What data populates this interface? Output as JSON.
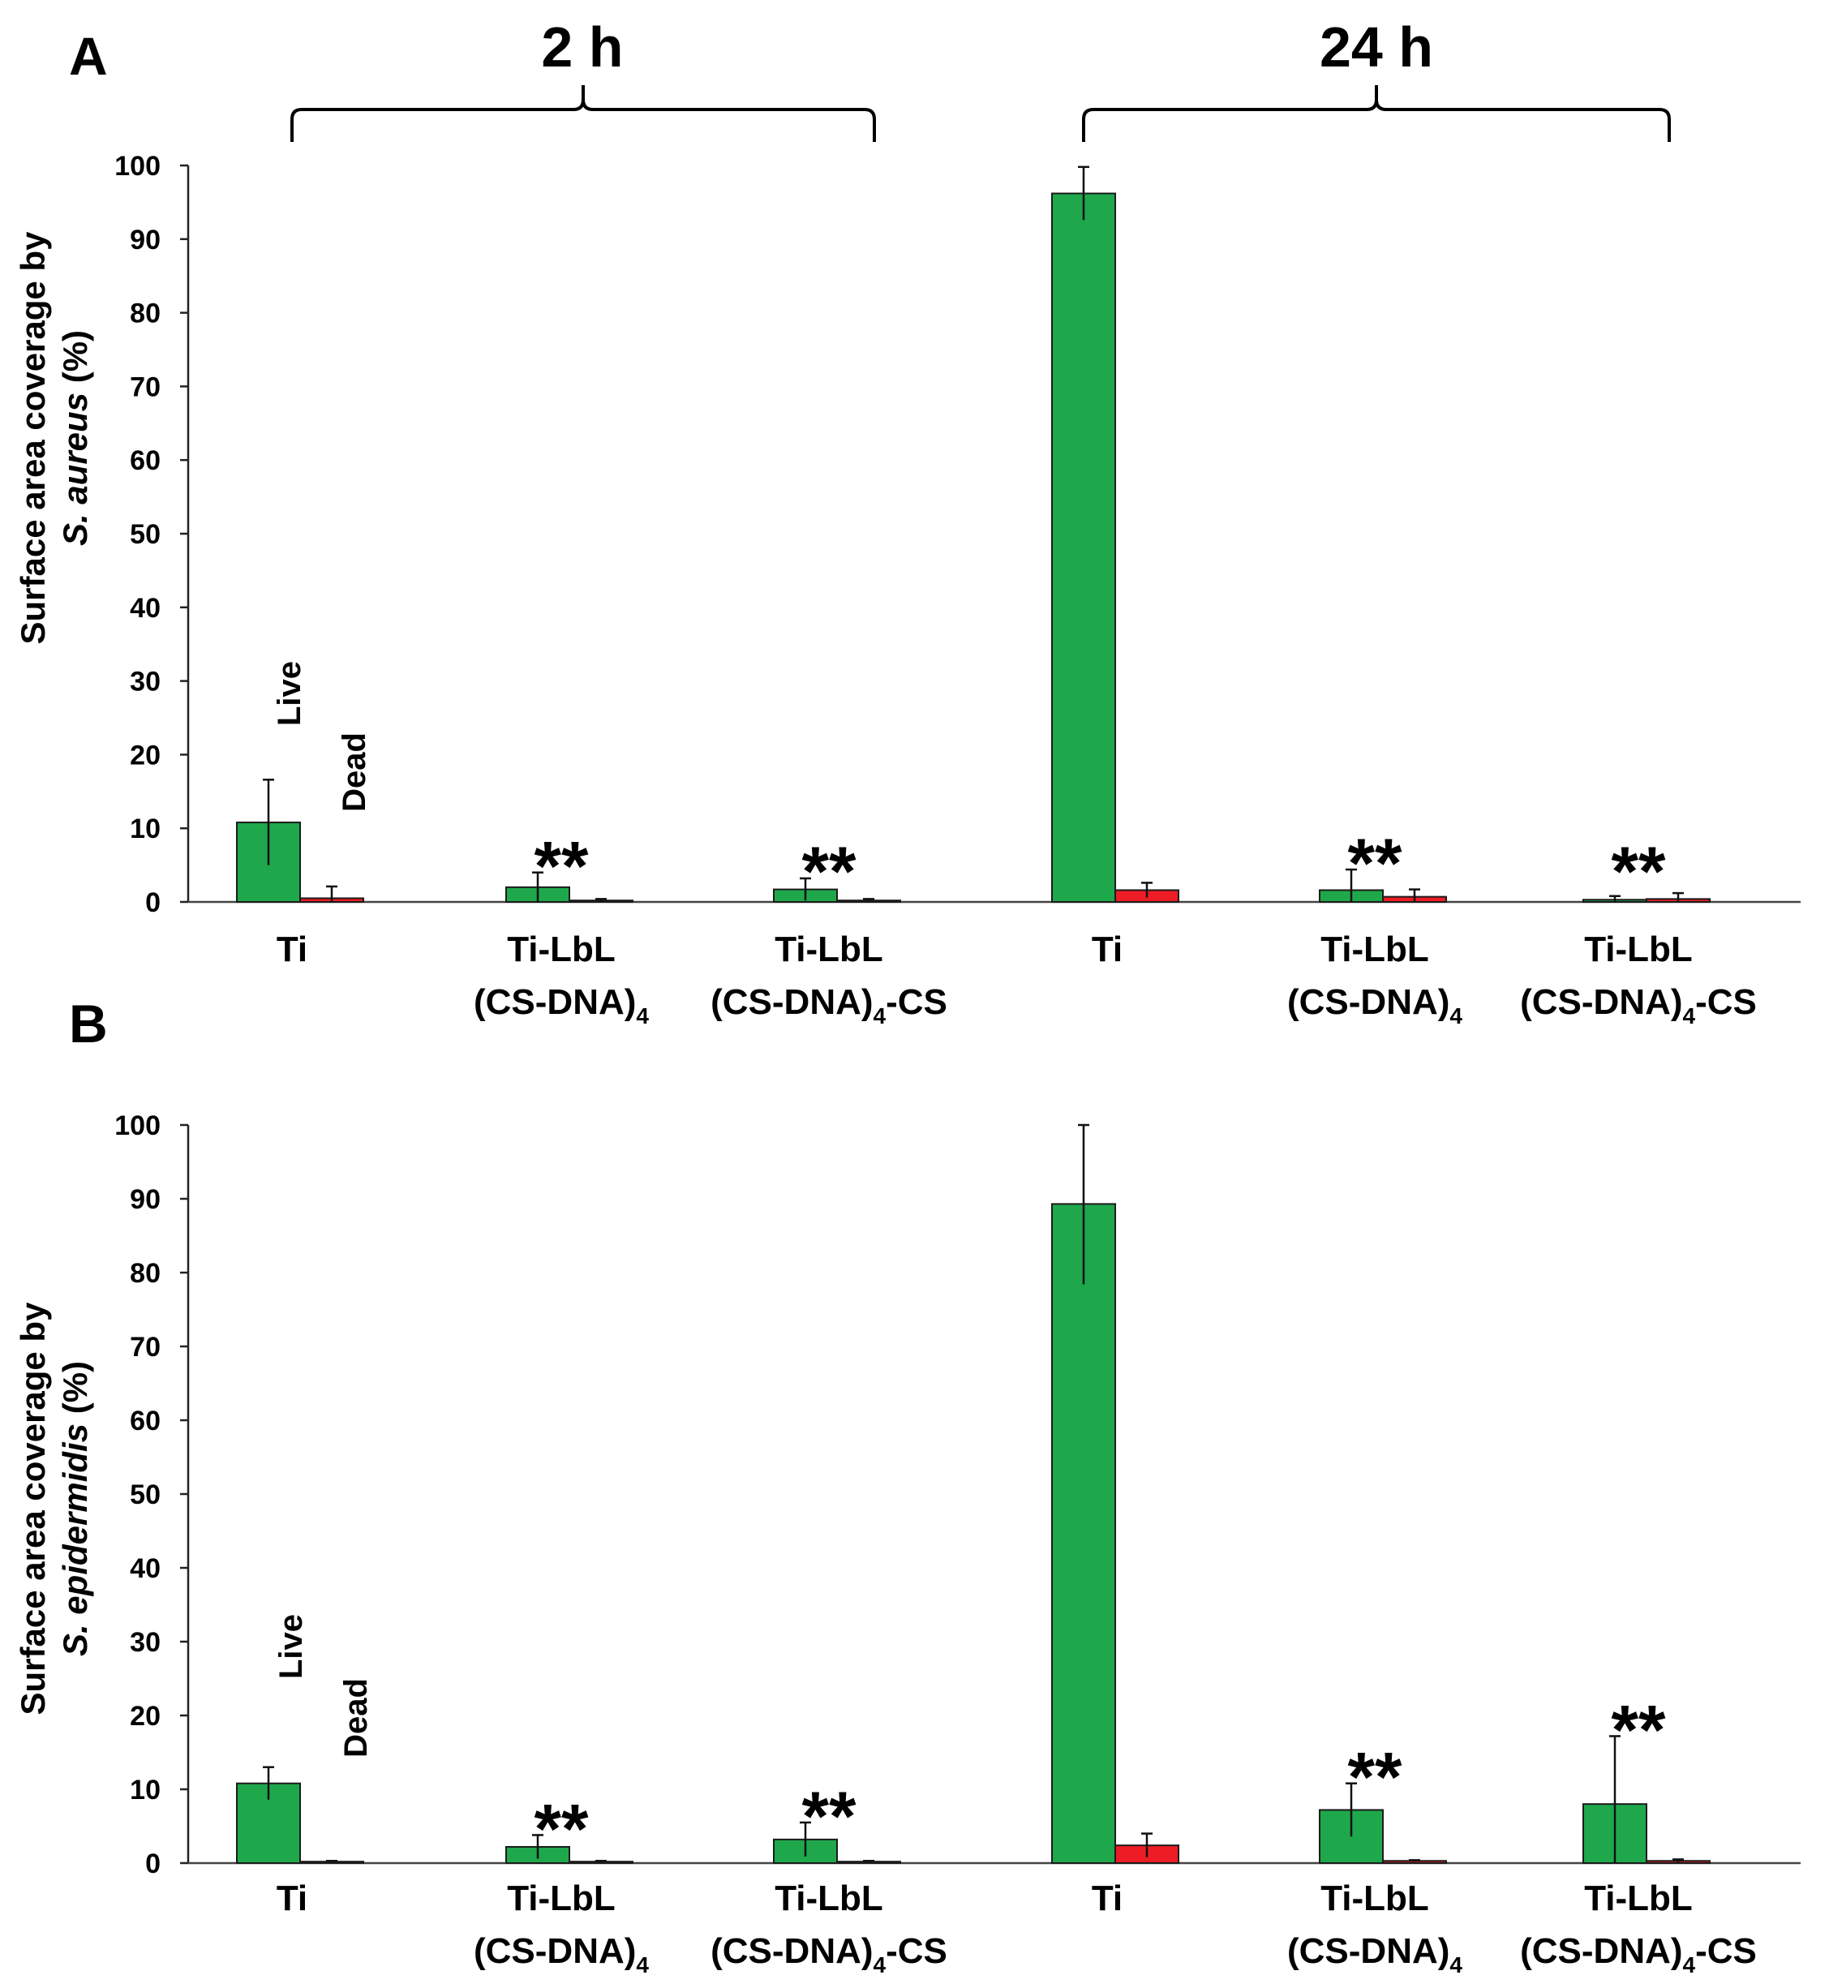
{
  "figure": {
    "time_labels": [
      "2 h",
      "24 h"
    ],
    "series_names": [
      "Live",
      "Dead"
    ],
    "series_colors": {
      "Live": "#1fa84b",
      "Dead": "#ee1c24"
    },
    "significance_marker": "**"
  },
  "chart_data": [
    {
      "type": "bar",
      "panel": "A",
      "title": "",
      "ylabel_prefix": "Surface area coverage by",
      "ylabel_species": "S. aureus",
      "ylabel_suffix": "(%)",
      "xlabel": "",
      "ylim": [
        0,
        100
      ],
      "yticks": [
        0,
        10,
        20,
        30,
        40,
        50,
        60,
        70,
        80,
        90,
        100
      ],
      "groups": [
        {
          "time": "2 h",
          "categories": [
            "Ti",
            "Ti-LbL (CS-DNA)4",
            "Ti-LbL (CS-DNA)4-CS"
          ]
        },
        {
          "time": "24 h",
          "categories": [
            "Ti",
            "Ti-LbL (CS-DNA)4",
            "Ti-LbL (CS-DNA)4-CS"
          ]
        }
      ],
      "categories": [
        {
          "line1": "Ti",
          "line2": ""
        },
        {
          "line1": "Ti-LbL",
          "line2": "(CS-DNA)",
          "sub": "4",
          "suffix": ""
        },
        {
          "line1": "Ti-LbL",
          "line2": "(CS-DNA)",
          "sub": "4",
          "suffix": "-CS"
        },
        {
          "line1": "Ti",
          "line2": ""
        },
        {
          "line1": "Ti-LbL",
          "line2": "(CS-DNA)",
          "sub": "4",
          "suffix": ""
        },
        {
          "line1": "Ti-LbL",
          "line2": "(CS-DNA)",
          "sub": "4",
          "suffix": "-CS"
        }
      ],
      "series": [
        {
          "name": "Live",
          "values": [
            10.8,
            2.0,
            1.7,
            96.2,
            1.6,
            0.3
          ],
          "errors": [
            5.8,
            2.0,
            1.5,
            3.6,
            2.8,
            0.5
          ]
        },
        {
          "name": "Dead",
          "values": [
            0.5,
            0.2,
            0.2,
            1.6,
            0.7,
            0.4
          ],
          "errors": [
            1.6,
            0.2,
            0.2,
            1.0,
            1.0,
            0.8
          ]
        }
      ],
      "significance": [
        false,
        true,
        true,
        false,
        true,
        true
      ]
    },
    {
      "type": "bar",
      "panel": "B",
      "title": "",
      "ylabel_prefix": "Surface area coverage by",
      "ylabel_species": "S. epidermidis",
      "ylabel_suffix": "(%)",
      "xlabel": "",
      "ylim": [
        0,
        100
      ],
      "yticks": [
        0,
        10,
        20,
        30,
        40,
        50,
        60,
        70,
        80,
        90,
        100
      ],
      "groups": [
        {
          "time": "2 h",
          "categories": [
            "Ti",
            "Ti-LbL (CS-DNA)4",
            "Ti-LbL (CS-DNA)4-CS"
          ]
        },
        {
          "time": "24 h",
          "categories": [
            "Ti",
            "Ti-LbL (CS-DNA)4",
            "Ti-LbL (CS-DNA)4-CS"
          ]
        }
      ],
      "categories": [
        {
          "line1": "Ti",
          "line2": ""
        },
        {
          "line1": "Ti-LbL",
          "line2": "(CS-DNA)",
          "sub": "4",
          "suffix": ""
        },
        {
          "line1": "Ti-LbL",
          "line2": "(CS-DNA)",
          "sub": "4",
          "suffix": "-CS"
        },
        {
          "line1": "Ti",
          "line2": ""
        },
        {
          "line1": "Ti-LbL",
          "line2": "(CS-DNA)",
          "sub": "4",
          "suffix": ""
        },
        {
          "line1": "Ti-LbL",
          "line2": "(CS-DNA)",
          "sub": "4",
          "suffix": "-CS"
        }
      ],
      "series": [
        {
          "name": "Live",
          "values": [
            10.8,
            2.2,
            3.2,
            89.3,
            7.2,
            8.0
          ],
          "errors": [
            2.2,
            1.6,
            2.3,
            10.9,
            3.6,
            9.2
          ]
        },
        {
          "name": "Dead",
          "values": [
            0.2,
            0.2,
            0.2,
            2.4,
            0.3,
            0.3
          ],
          "errors": [
            0.1,
            0.1,
            0.1,
            1.6,
            0.1,
            0.2
          ]
        }
      ],
      "significance": [
        false,
        true,
        true,
        false,
        true,
        true
      ]
    }
  ]
}
